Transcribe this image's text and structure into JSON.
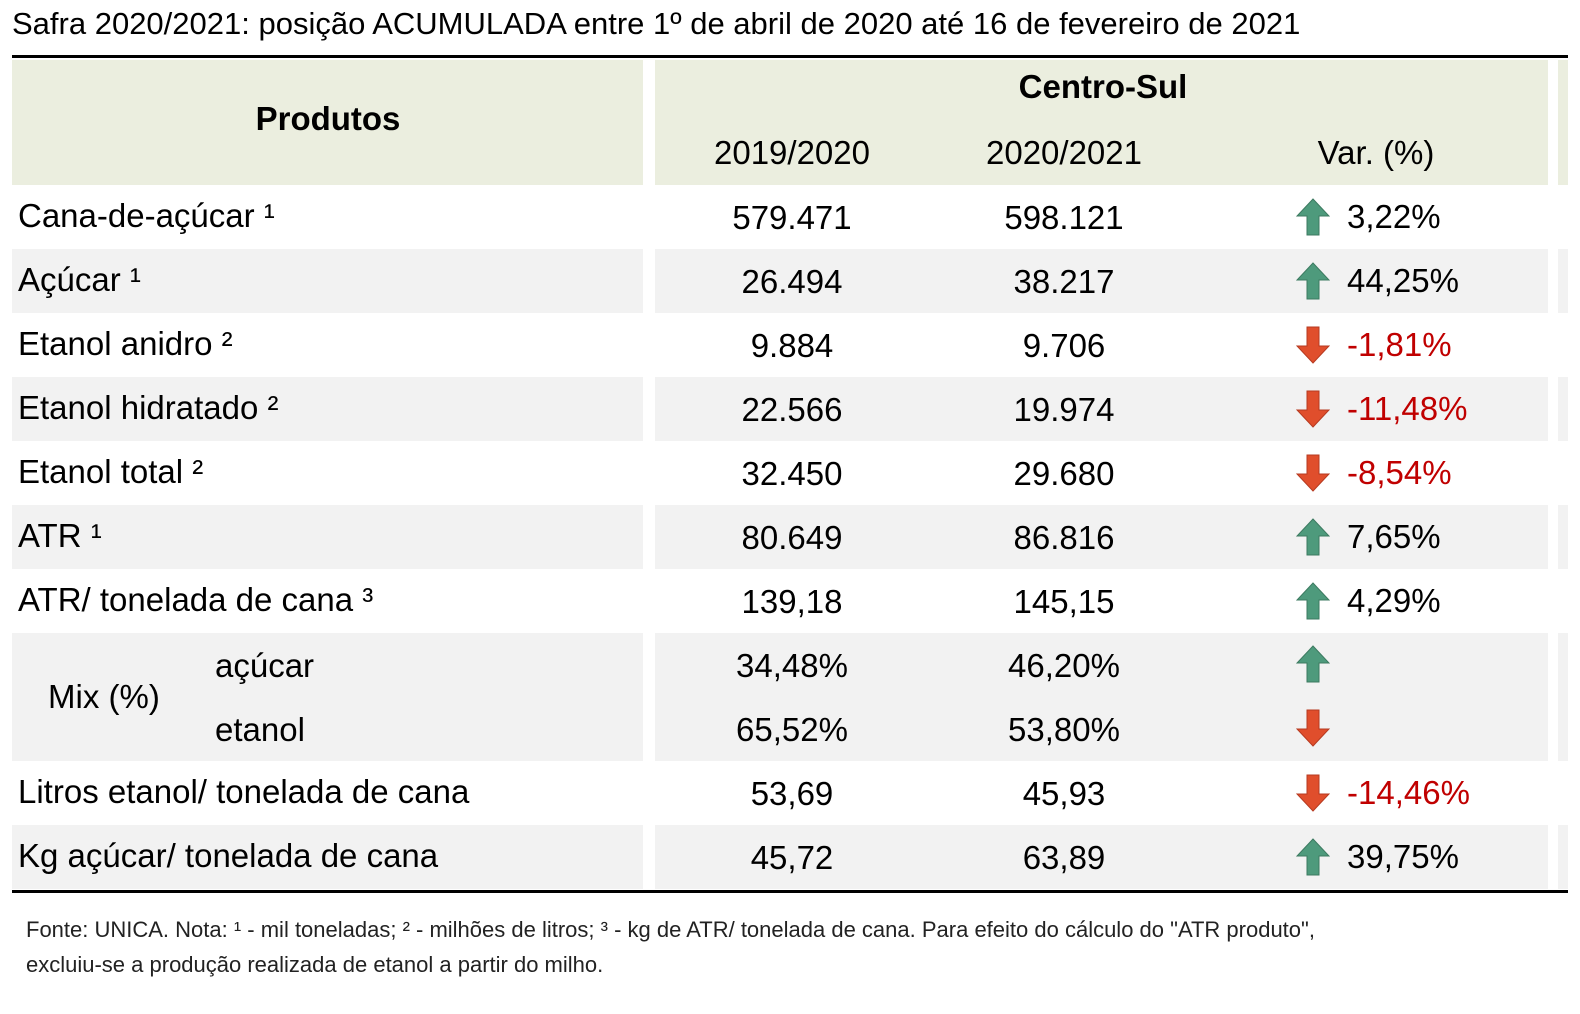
{
  "title": "Safra 2020/2021: posição ACUMULADA entre 1º de abril de 2020 até 16 de fevereiro de 2021",
  "header": {
    "products": "Produtos",
    "region": "Centro-Sul",
    "columns": [
      "2019/2020",
      "2020/2021",
      "Var. (%)"
    ]
  },
  "rows": [
    {
      "label": "Cana-de-açúcar ¹",
      "values": [
        "579.471",
        "598.121"
      ],
      "var": "3,22%",
      "trend": "up"
    },
    {
      "label": "Açúcar ¹",
      "values": [
        "26.494",
        "38.217"
      ],
      "var": "44,25%",
      "trend": "up"
    },
    {
      "label": "Etanol anidro ²",
      "values": [
        "9.884",
        "9.706"
      ],
      "var": "-1,81%",
      "trend": "down"
    },
    {
      "label": "Etanol hidratado ²",
      "values": [
        "22.566",
        "19.974"
      ],
      "var": "-11,48%",
      "trend": "down"
    },
    {
      "label": "Etanol total ²",
      "values": [
        "32.450",
        "29.680"
      ],
      "var": "-8,54%",
      "trend": "down"
    },
    {
      "label": "ATR ¹",
      "values": [
        "80.649",
        "86.816"
      ],
      "var": "7,65%",
      "trend": "up"
    },
    {
      "label": "ATR/ tonelada de cana ³",
      "values": [
        "139,18",
        "145,15"
      ],
      "var": "4,29%",
      "trend": "up"
    },
    {
      "label": "Mix (%)",
      "sub": [
        {
          "label": "açúcar",
          "values": [
            "34,48%",
            "46,20%"
          ],
          "trend": "up"
        },
        {
          "label": "etanol",
          "values": [
            "65,52%",
            "53,80%"
          ],
          "trend": "down"
        }
      ]
    },
    {
      "label": "Litros etanol/ tonelada de cana",
      "values": [
        "53,69",
        "45,93"
      ],
      "var": "-14,46%",
      "trend": "down"
    },
    {
      "label": "Kg açúcar/ tonelada de cana",
      "values": [
        "45,72",
        "63,89"
      ],
      "var": "39,75%",
      "trend": "up"
    }
  ],
  "footnote": [
    "Fonte: UNICA. Nota: ¹ - mil toneladas; ² - milhões de litros; ³ - kg de ATR/ tonelada de cana. Para efeito do cálculo do \"ATR produto\",",
    "excluiu-se a produção realizada de etanol a partir do milho."
  ]
}
